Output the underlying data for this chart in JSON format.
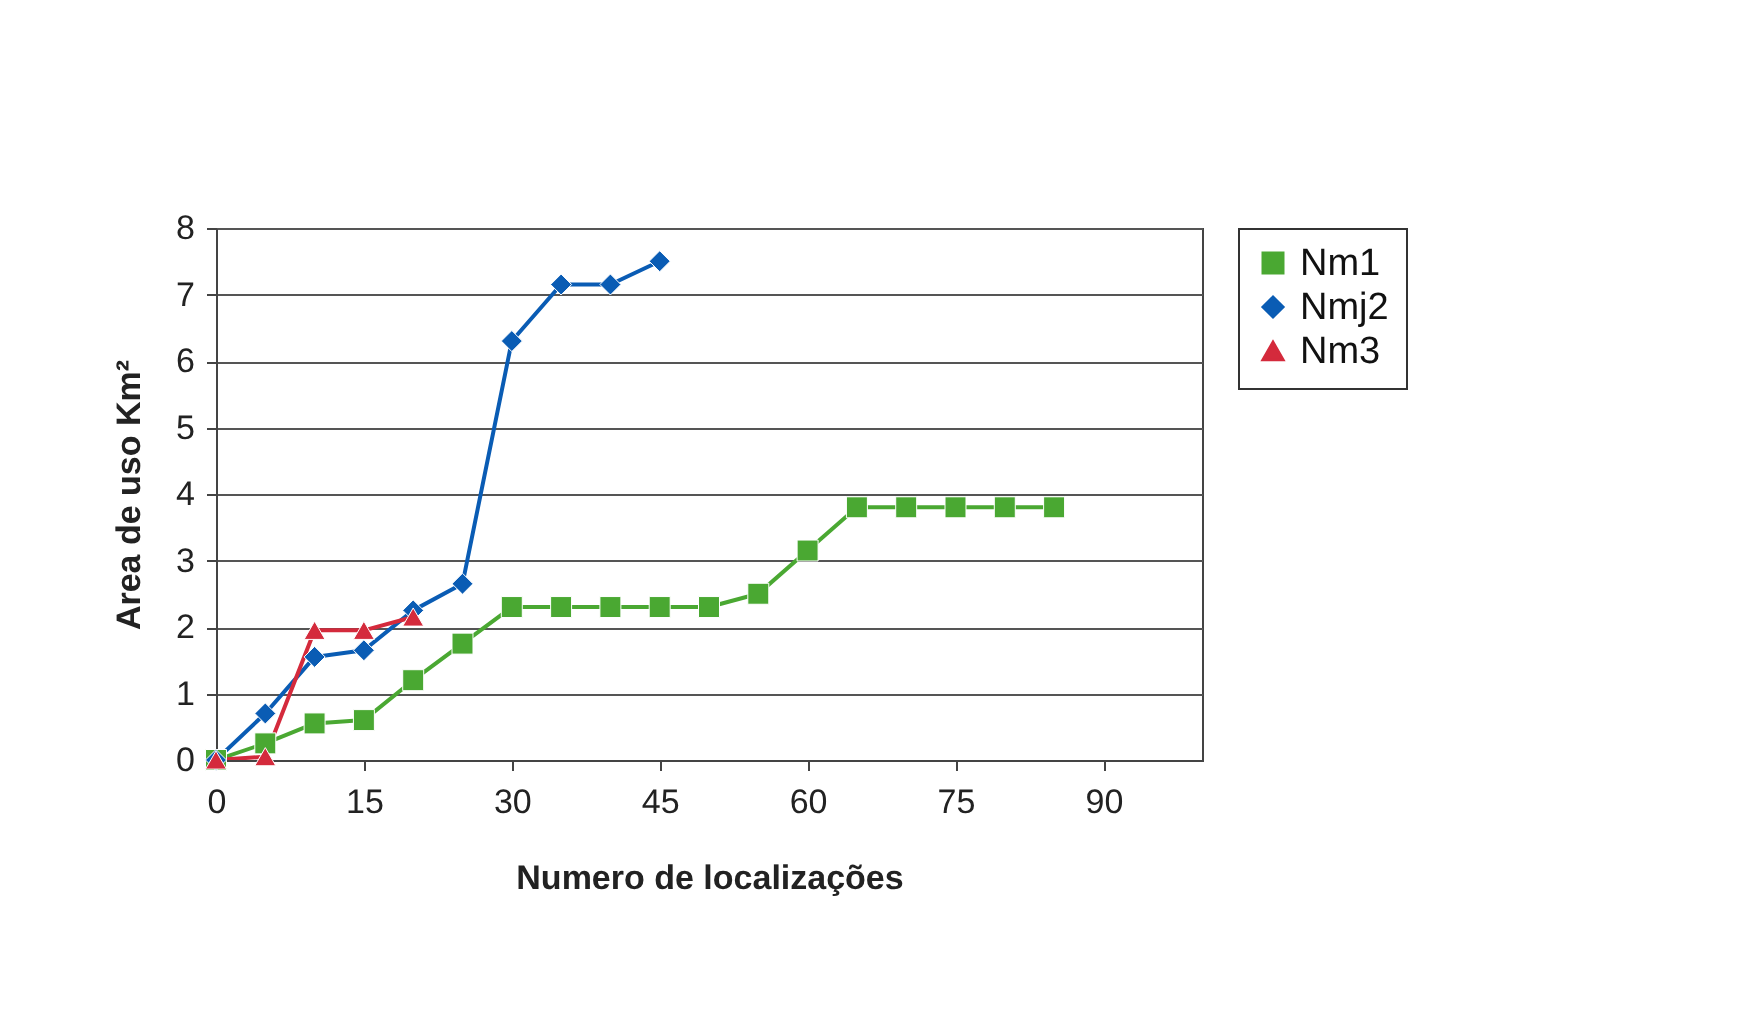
{
  "chart_data": {
    "type": "line",
    "xlabel": "Numero de localizações",
    "ylabel": "Area de uso Km²",
    "xlim": [
      0,
      100
    ],
    "xticks": [
      0,
      15,
      30,
      45,
      60,
      75,
      90
    ],
    "ylim": [
      0,
      8
    ],
    "yticks": [
      0,
      1,
      2,
      3,
      4,
      5,
      6,
      7,
      8
    ],
    "grid": "y",
    "legend": "top right",
    "series": [
      {
        "name": "Nm1",
        "color": "#4aa832",
        "marker": "square",
        "x": [
          0,
          5,
          10,
          15,
          20,
          25,
          30,
          35,
          40,
          45,
          50,
          55,
          60,
          65,
          70,
          75,
          80,
          85
        ],
        "values": [
          0,
          0.25,
          0.55,
          0.6,
          1.2,
          1.75,
          2.3,
          2.3,
          2.3,
          2.3,
          2.3,
          2.5,
          3.15,
          3.8,
          3.8,
          3.8,
          3.8,
          3.8
        ]
      },
      {
        "name": "Nmj2",
        "color": "#0a5cb4",
        "marker": "diamond",
        "x": [
          0,
          5,
          10,
          15,
          20,
          25,
          30,
          35,
          40,
          45
        ],
        "values": [
          0,
          0.7,
          1.55,
          1.65,
          2.25,
          2.65,
          6.3,
          7.15,
          7.15,
          7.5
        ]
      },
      {
        "name": "Nm3",
        "color": "#d42a3c",
        "marker": "triangle",
        "x": [
          0,
          5,
          10,
          15,
          20
        ],
        "values": [
          0,
          0.05,
          1.95,
          1.95,
          2.15
        ]
      }
    ]
  }
}
